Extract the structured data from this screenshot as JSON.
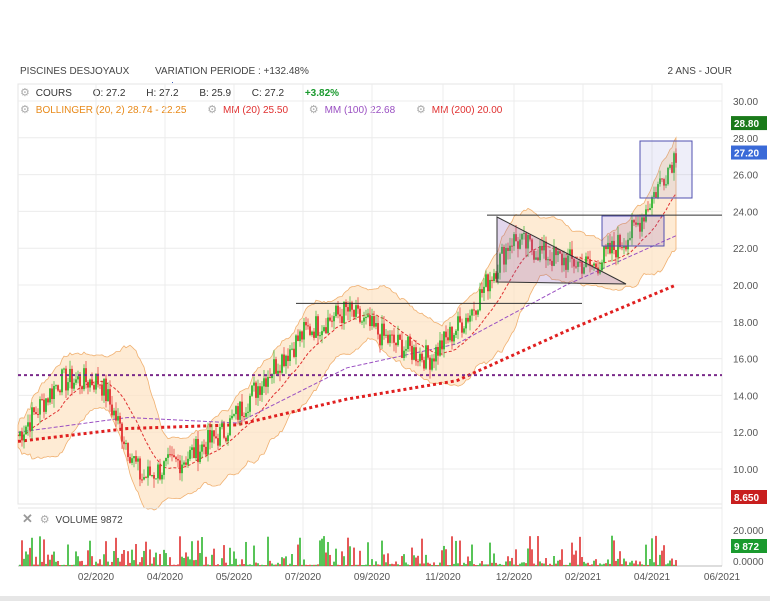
{
  "header": {
    "title": "PISCINES DESJOYAUX",
    "variation": "VARIATION PERIODE : +132.48%",
    "period": "2 ANS - JOUR"
  },
  "quote": {
    "cours_label": "COURS",
    "open": "O: 27.2",
    "high": "H: 27.2",
    "low": "B: 25.9",
    "close": "C: 27.2",
    "change": "+3.82%"
  },
  "indicators": {
    "bollinger": "BOLLINGER (20, 2) 28.74 - 22.25",
    "mm20": "MM (20) 25.50",
    "mm100": "MM (100) 22.68",
    "mm200": "MM (200) 20.00"
  },
  "badges": {
    "high_badge": "28.80",
    "last_badge": "27.20",
    "low_badge": "8.650",
    "volume_badge": "9 872"
  },
  "volume": {
    "label": "VOLUME",
    "value": "9872"
  },
  "colors": {
    "up": "#2fb52f",
    "down": "#e03030",
    "bollinger_fill": "#fde2c2",
    "bollinger_line": "#f0b070",
    "mm20": "#e03030",
    "mm100": "#9a4fc2",
    "mm200": "#e02020",
    "support": "#7a2a8a"
  },
  "chart_data": {
    "type": "line",
    "title": "PISCINES DESJOYAUX",
    "y_ticks": [
      "30.00",
      "28.00",
      "26.00",
      "24.00",
      "22.00",
      "20.00",
      "18.00",
      "16.00",
      "14.00",
      "12.00",
      "10.00"
    ],
    "ylim": [
      8.65,
      30.0
    ],
    "x_ticks": [
      "02/2020",
      "04/2020",
      "05/2020",
      "07/2020",
      "09/2020",
      "11/2020",
      "12/2020",
      "02/2021",
      "04/2021",
      "06/2021"
    ],
    "volume_ticks": [
      "20.000",
      "0.0000"
    ],
    "volume_ylim": [
      0,
      20000
    ],
    "series": [
      {
        "name": "COURS",
        "x": [
          "2019-12",
          "2020-01",
          "2020-02",
          "2020-03",
          "2020-04",
          "2020-05",
          "2020-06",
          "2020-07",
          "2020-08",
          "2020-09",
          "2020-10",
          "2020-11",
          "2020-12",
          "2021-01",
          "2021-02",
          "2021-03",
          "2021-04"
        ],
        "values": [
          11.8,
          14.8,
          14.8,
          9.5,
          10.5,
          12.0,
          15.0,
          17.5,
          18.6,
          17.0,
          16.0,
          18.5,
          22.5,
          21.5,
          21.0,
          23.0,
          27.2
        ]
      },
      {
        "name": "MM (200)",
        "x": [
          "2019-12",
          "2020-03",
          "2020-06",
          "2020-09",
          "2020-11",
          "2021-01",
          "2021-04"
        ],
        "values": [
          11.5,
          12.2,
          12.4,
          13.8,
          14.8,
          17.5,
          20.0
        ]
      },
      {
        "name": "MM (100)",
        "x": [
          "2019-12",
          "2020-03",
          "2020-06",
          "2020-09",
          "2020-11",
          "2021-01",
          "2021-04"
        ],
        "values": [
          12.0,
          12.8,
          12.5,
          15.5,
          16.8,
          20.0,
          22.68
        ]
      }
    ],
    "annotations": [
      {
        "type": "hline",
        "value": 15.1,
        "style": "dotted"
      },
      {
        "type": "hline",
        "value": 23.8
      },
      {
        "type": "hline",
        "value": 19.0
      }
    ]
  }
}
